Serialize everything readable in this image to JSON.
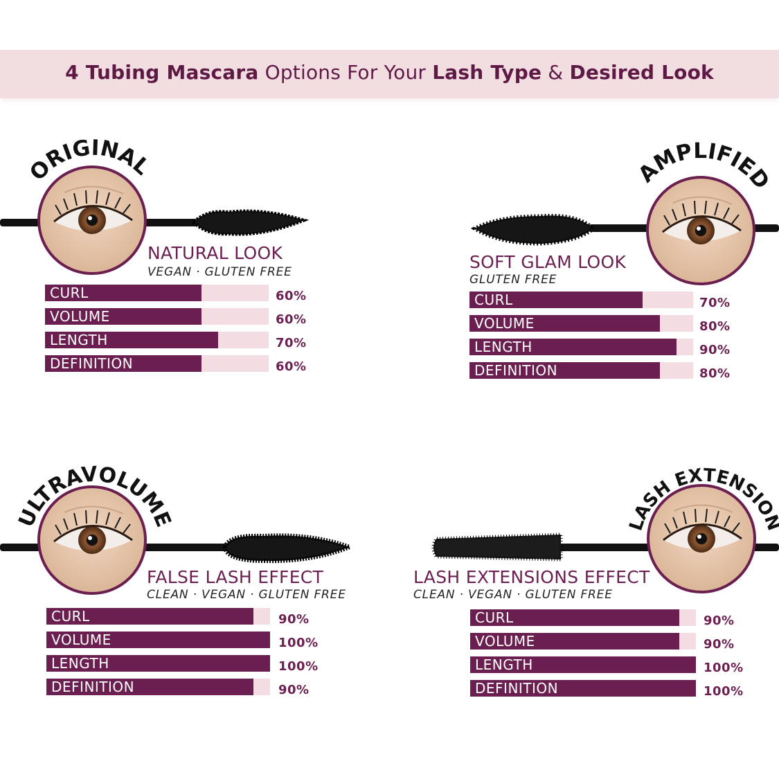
{
  "header": {
    "title_parts": [
      "4 Tubing Mascara",
      " Options For Your ",
      "Lash Type",
      " & ",
      "Desired Look"
    ]
  },
  "colors": {
    "accent": "#6b1f50",
    "track": "#f3dde2",
    "band": "#f2dde1",
    "title": "#5e1a45"
  },
  "chart_data": [
    {
      "type": "bar",
      "orientation": "horizontal",
      "name": "ORIGINAL",
      "title": "NATURAL LOOK",
      "subtitle": "VEGAN · GLUTEN FREE",
      "categories": [
        "CURL",
        "VOLUME",
        "LENGTH",
        "DEFINITION"
      ],
      "values": [
        60,
        60,
        70,
        60
      ],
      "labels": [
        "60%",
        "60%",
        "70%",
        "60%"
      ],
      "xlim": [
        0,
        100
      ]
    },
    {
      "type": "bar",
      "orientation": "horizontal",
      "name": "AMPLIFIED",
      "title": "SOFT GLAM LOOK",
      "subtitle": "GLUTEN FREE",
      "categories": [
        "CURL",
        "VOLUME",
        "LENGTH",
        "DEFINITION"
      ],
      "values": [
        70,
        80,
        90,
        80
      ],
      "labels": [
        "70%",
        "80%",
        "90%",
        "80%"
      ],
      "xlim": [
        0,
        100
      ]
    },
    {
      "type": "bar",
      "orientation": "horizontal",
      "name": "ULTRAVOLUME",
      "title": "FALSE LASH EFFECT",
      "subtitle": "CLEAN · VEGAN · GLUTEN FREE",
      "categories": [
        "CURL",
        "VOLUME",
        "LENGTH",
        "DEFINITION"
      ],
      "values": [
        90,
        100,
        100,
        90
      ],
      "labels": [
        "90%",
        "100%",
        "100%",
        "90%"
      ],
      "xlim": [
        0,
        100
      ]
    },
    {
      "type": "bar",
      "orientation": "horizontal",
      "name": "LASH EXTENSION",
      "title": "LASH EXTENSIONS EFFECT",
      "subtitle": "CLEAN · VEGAN · GLUTEN FREE",
      "categories": [
        "CURL",
        "VOLUME",
        "LENGTH",
        "DEFINITION"
      ],
      "values": [
        90,
        90,
        100,
        100
      ],
      "labels": [
        "90%",
        "90%",
        "100%",
        "100%"
      ],
      "xlim": [
        0,
        100
      ]
    }
  ]
}
